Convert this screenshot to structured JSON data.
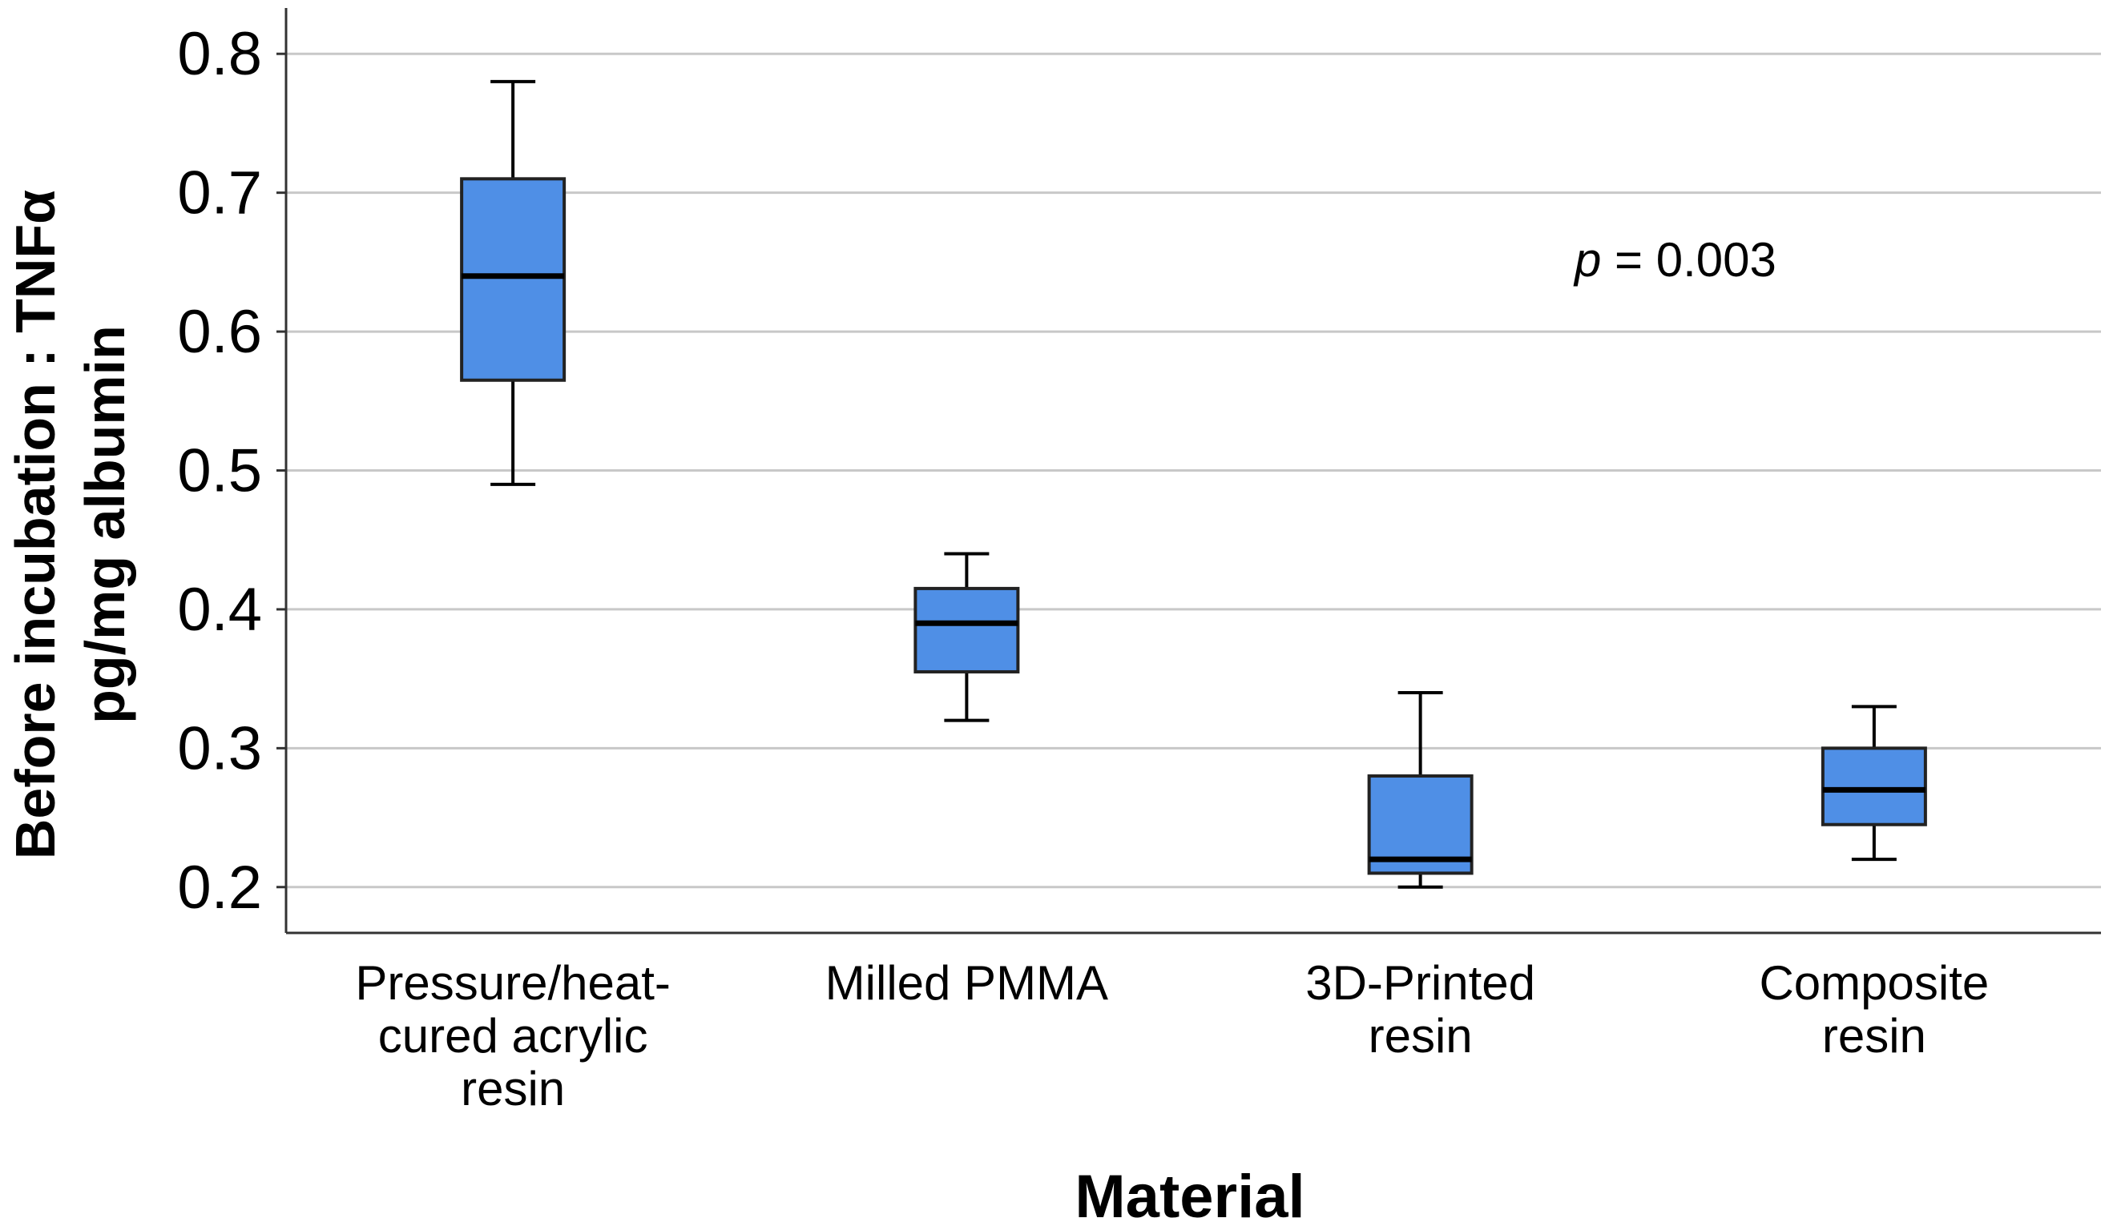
{
  "chart_data": {
    "type": "box",
    "title": "",
    "xlabel": "Material",
    "ylabel": [
      "Before incubation : TNFα",
      "pg/mg albumin"
    ],
    "ylim": [
      0.167,
      0.833
    ],
    "yticks": [
      0.2,
      0.3,
      0.4,
      0.5,
      0.6,
      0.7,
      0.8
    ],
    "ytick_labels": [
      "0.2",
      "0.3",
      "0.4",
      "0.5",
      "0.6",
      "0.7",
      "0.8"
    ],
    "grid": true,
    "categories": [
      [
        "Pressure/heat-",
        "cured acrylic",
        "resin"
      ],
      [
        "Milled PMMA"
      ],
      [
        "3D-Printed",
        "resin"
      ],
      [
        "Composite",
        "resin"
      ]
    ],
    "boxes": [
      {
        "whisker_low": 0.49,
        "q1": 0.565,
        "median": 0.64,
        "q3": 0.71,
        "whisker_high": 0.78
      },
      {
        "whisker_low": 0.32,
        "q1": 0.355,
        "median": 0.39,
        "q3": 0.415,
        "whisker_high": 0.44
      },
      {
        "whisker_low": 0.2,
        "q1": 0.21,
        "median": 0.22,
        "q3": 0.28,
        "whisker_high": 0.34
      },
      {
        "whisker_low": 0.22,
        "q1": 0.245,
        "median": 0.27,
        "q3": 0.3,
        "whisker_high": 0.33
      }
    ],
    "annotation": {
      "italic": "p",
      "rest": " = 0.003"
    },
    "colors": {
      "box_fill": "#4f8fe6",
      "grid": "#c8c8c8",
      "axis": "#333333"
    }
  }
}
